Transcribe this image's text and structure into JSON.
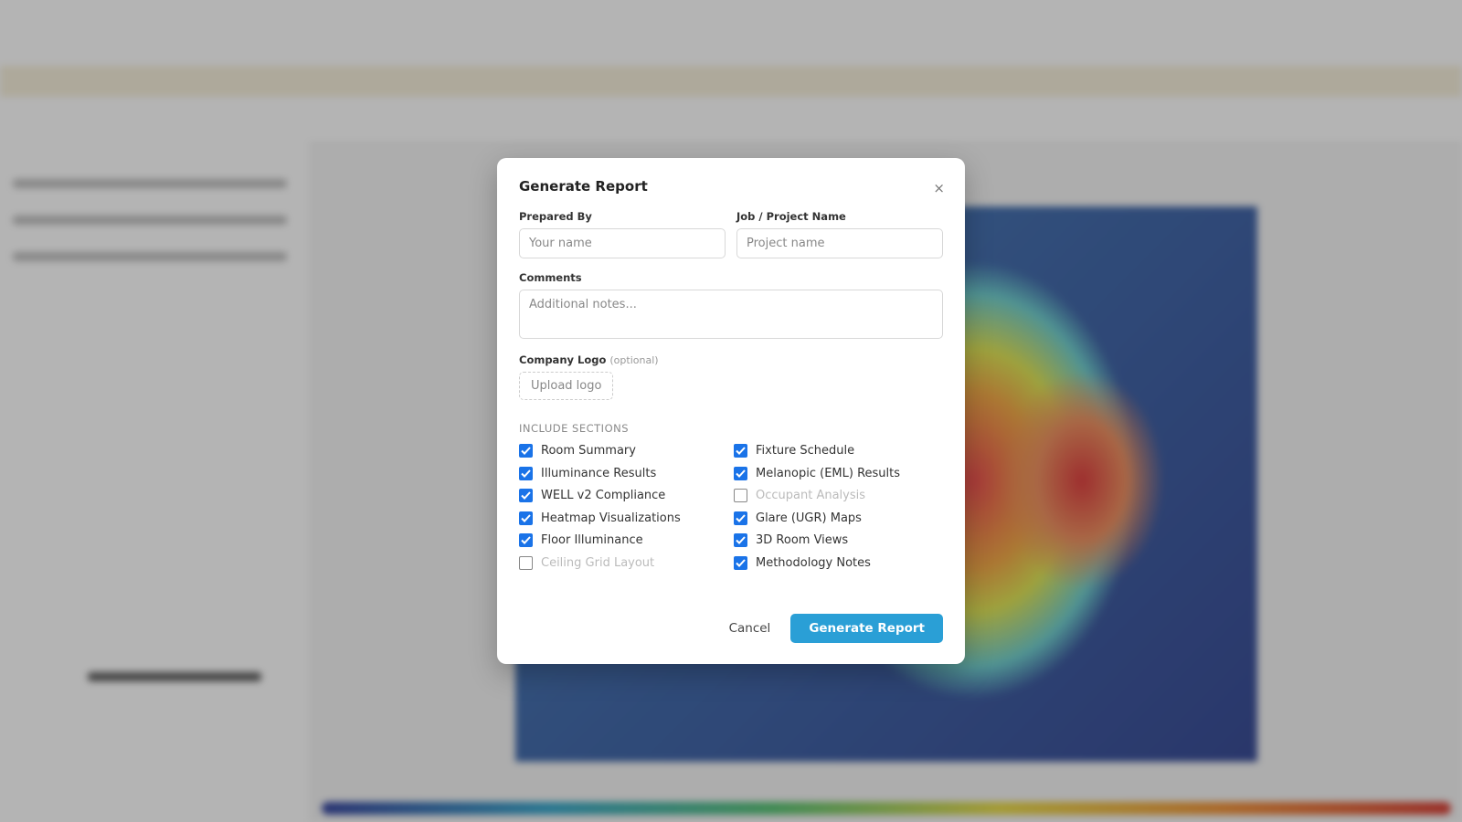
{
  "dialog": {
    "title": "Generate Report",
    "close": "×",
    "fields": [
      {
        "label": "Prepared By",
        "placeholder": "Your name"
      },
      {
        "label": "Job / Project Name",
        "placeholder": "Project name"
      }
    ],
    "comments": {
      "label": "Comments",
      "placeholder": "Additional notes..."
    },
    "logo": {
      "label": "Company Logo",
      "note": "(optional)",
      "button": "Upload logo"
    },
    "sections_heading": "INCLUDE SECTIONS",
    "sections": [
      {
        "label": "Room Summary",
        "checked": true
      },
      {
        "label": "Fixture Schedule",
        "checked": true
      },
      {
        "label": "Illuminance Results",
        "checked": true
      },
      {
        "label": "Melanopic (EML) Results",
        "checked": true
      },
      {
        "label": "WELL v2 Compliance",
        "checked": true
      },
      {
        "label": "Occupant Analysis",
        "checked": false
      },
      {
        "label": "Heatmap Visualizations",
        "checked": true
      },
      {
        "label": "Glare (UGR) Maps",
        "checked": true
      },
      {
        "label": "Floor Illuminance",
        "checked": true
      },
      {
        "label": "3D Room Views",
        "checked": true
      },
      {
        "label": "Ceiling Grid Layout",
        "checked": false
      },
      {
        "label": "Methodology Notes",
        "checked": true
      }
    ],
    "actions": {
      "cancel": "Cancel",
      "submit": "Generate Report"
    }
  }
}
